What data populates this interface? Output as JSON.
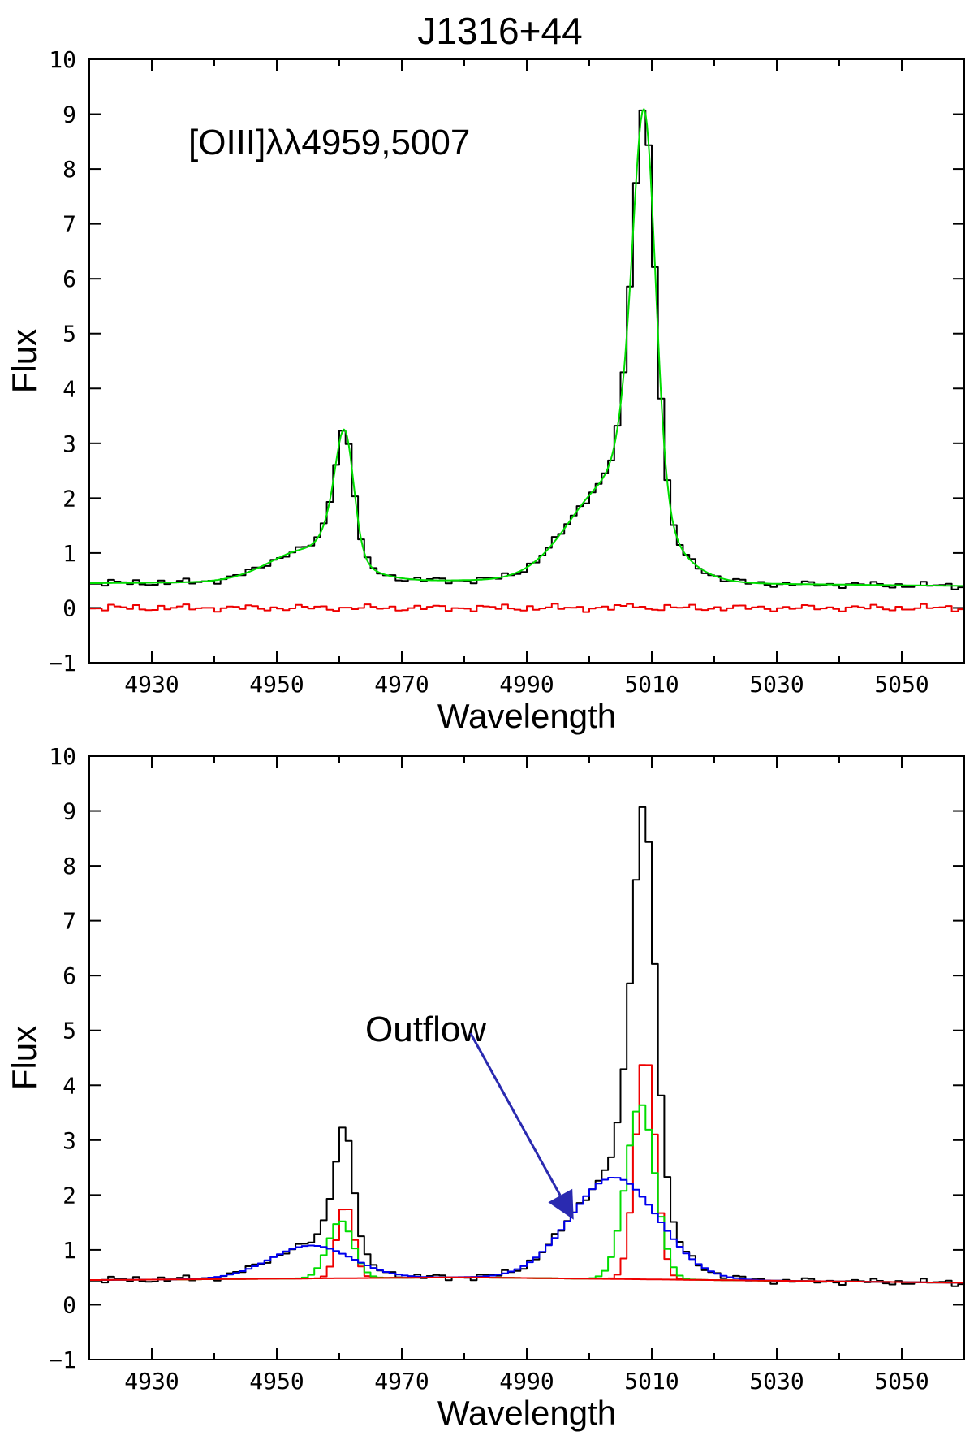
{
  "figure": {
    "title": "J1316+44"
  },
  "colors": {
    "observed": "#000000",
    "total_fit": "#00dd00",
    "residual": "#ee0000",
    "narrow": "#ee0000",
    "core": "#00dd00",
    "outflow": "#0000ee",
    "continuum": "#ee0000",
    "arrow": "#2a2ab0"
  },
  "chart_data": [
    {
      "id": "top",
      "type": "line",
      "xlabel": "Wavelength",
      "ylabel": "Flux",
      "xlim": [
        4920,
        5060
      ],
      "ylim": [
        -1,
        10
      ],
      "xticks": [
        4930,
        4950,
        4970,
        4990,
        5010,
        5030,
        5050
      ],
      "xminor": [
        4940,
        4960,
        4980,
        5000,
        5020,
        5040
      ],
      "yticks": [
        -1,
        0,
        1,
        2,
        3,
        4,
        5,
        6,
        7,
        8,
        9,
        10
      ],
      "annotation": "[OIII]λλ4959,5007",
      "model": {
        "x_range": [
          4920,
          5060
        ],
        "step": 1,
        "continuum": {
          "a": 0.45,
          "b": 0.5,
          "c": 0.4,
          "x1": 4920,
          "x2": 4980,
          "x3": 5060
        },
        "components": [
          {
            "name": "narrow 4959",
            "amp": 1.35,
            "center": 4961.0,
            "sigma": 1.3
          },
          {
            "name": "core 4959",
            "amp": 1.05,
            "center": 4960.2,
            "sigma": 2.0
          },
          {
            "name": "outflow 4959",
            "amp": 0.6,
            "center": 4955.5,
            "sigma": 6.5
          },
          {
            "name": "narrow 5007",
            "amp": 4.1,
            "center": 5009.0,
            "sigma": 1.6
          },
          {
            "name": "core 5007",
            "amp": 3.2,
            "center": 5008.2,
            "sigma": 2.3
          },
          {
            "name": "outflow 5007",
            "amp": 1.85,
            "center": 5004.0,
            "sigma": 7.0
          }
        ]
      },
      "series": [
        {
          "name": "observed",
          "style": "step",
          "source": "observed"
        },
        {
          "name": "total fit",
          "style": "line",
          "source": "total"
        },
        {
          "name": "residual",
          "style": "step",
          "source": "residual"
        }
      ]
    },
    {
      "id": "bottom",
      "type": "line",
      "xlabel": "Wavelength",
      "ylabel": "Flux",
      "xlim": [
        4920,
        5060
      ],
      "ylim": [
        -1,
        10
      ],
      "xticks": [
        4930,
        4950,
        4970,
        4990,
        5010,
        5030,
        5050
      ],
      "xminor": [
        4940,
        4960,
        4980,
        5000,
        5020,
        5040
      ],
      "yticks": [
        -1,
        0,
        1,
        2,
        3,
        4,
        5,
        6,
        7,
        8,
        9,
        10
      ],
      "annotation": "Outflow",
      "arrow": {
        "from": [
          4981,
          4.95
        ],
        "to": [
          4997.5,
          1.55
        ]
      },
      "series": [
        {
          "name": "observed",
          "style": "step",
          "source": "observed"
        },
        {
          "name": "narrow component",
          "style": "step",
          "source": "narrow"
        },
        {
          "name": "core component",
          "style": "step",
          "source": "core"
        },
        {
          "name": "outflow component",
          "style": "step",
          "source": "outflow"
        },
        {
          "name": "continuum",
          "style": "line",
          "source": "continuum"
        }
      ]
    }
  ]
}
